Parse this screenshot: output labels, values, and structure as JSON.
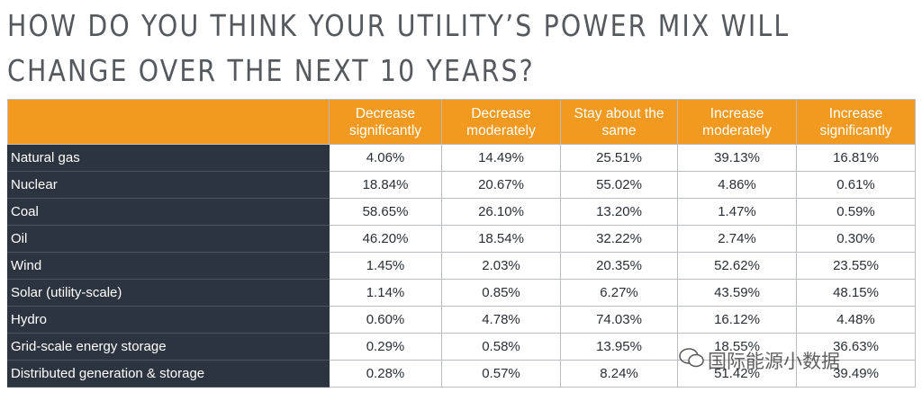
{
  "header": {
    "title_lines": [
      "HOW DO YOU THINK YOUR UTILITY’S POWER MIX WILL",
      "CHANGE OVER THE NEXT 10 YEARS?"
    ]
  },
  "table": {
    "columns": [
      "Decrease significantly",
      "Decrease moderately",
      "Stay about the same",
      "Increase moderately",
      "Increase significantly"
    ],
    "rows": [
      [
        "Natural gas",
        "4.06%",
        "14.49%",
        "25.51%",
        "39.13%",
        "16.81%"
      ],
      [
        "Nuclear",
        "18.84%",
        "20.67%",
        "55.02%",
        "4.86%",
        "0.61%"
      ],
      [
        "Coal",
        "58.65%",
        "26.10%",
        "13.20%",
        "1.47%",
        "0.59%"
      ],
      [
        "Oil",
        "46.20%",
        "18.54%",
        "32.22%",
        "2.74%",
        "0.30%"
      ],
      [
        "Wind",
        "1.45%",
        "2.03%",
        "20.35%",
        "52.62%",
        "23.55%"
      ],
      [
        "Solar (utility-scale)",
        "1.14%",
        "0.85%",
        "6.27%",
        "43.59%",
        "48.15%"
      ],
      [
        "Hydro",
        "0.60%",
        "4.78%",
        "74.03%",
        "16.12%",
        "4.48%"
      ],
      [
        "Grid-scale energy storage",
        "0.29%",
        "0.58%",
        "13.95%",
        "18.55%",
        "36.63%"
      ],
      [
        "Distributed generation & storage",
        "0.28%",
        "0.57%",
        "8.24%",
        "51.42%",
        "39.49%"
      ]
    ]
  },
  "watermark": "国际能源小数据"
}
